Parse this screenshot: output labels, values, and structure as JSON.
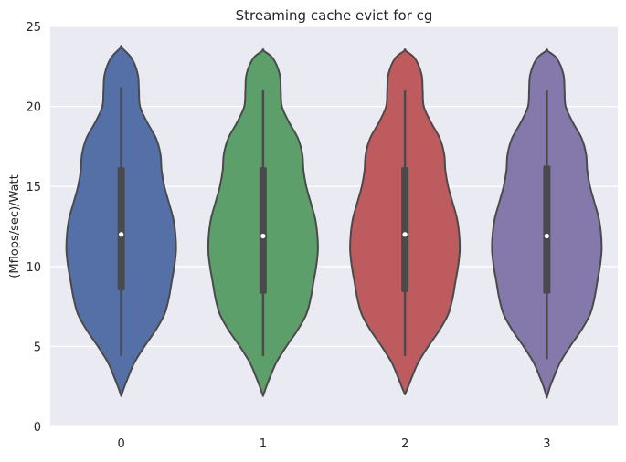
{
  "chart_data": {
    "type": "violin",
    "title": "Streaming cache evict for cg",
    "xlabel": "",
    "ylabel": "(Mflops/sec)/Watt",
    "ylim": [
      0,
      25
    ],
    "yticks": [
      0,
      5,
      10,
      15,
      20,
      25
    ],
    "grid": true,
    "categories": [
      "0",
      "1",
      "2",
      "3"
    ],
    "colors": {
      "plot_bg": "#EAEAF2",
      "grid": "#FFFFFF",
      "outline": "#4A4A4A",
      "violins": [
        "#5470A6",
        "#5C9F6B",
        "#BE5B5E",
        "#8579AB"
      ]
    },
    "violins": [
      {
        "category": "0",
        "median": 12.0,
        "q1": 8.5,
        "q3": 16.2,
        "whisker_low": 4.4,
        "whisker_high": 21.2,
        "min_extent": 1.9,
        "max_extent": 23.7,
        "density": [
          [
            1.9,
            0.0
          ],
          [
            2.5,
            0.06
          ],
          [
            3.2,
            0.14
          ],
          [
            4.0,
            0.24
          ],
          [
            5.0,
            0.42
          ],
          [
            6.0,
            0.62
          ],
          [
            7.0,
            0.78
          ],
          [
            8.0,
            0.86
          ],
          [
            9.0,
            0.91
          ],
          [
            10.0,
            0.96
          ],
          [
            11.0,
            0.99
          ],
          [
            12.0,
            0.98
          ],
          [
            13.0,
            0.94
          ],
          [
            14.0,
            0.86
          ],
          [
            15.0,
            0.78
          ],
          [
            16.0,
            0.73
          ],
          [
            17.0,
            0.71
          ],
          [
            18.0,
            0.63
          ],
          [
            19.0,
            0.47
          ],
          [
            20.0,
            0.34
          ],
          [
            21.0,
            0.32
          ],
          [
            22.0,
            0.3
          ],
          [
            23.0,
            0.19
          ],
          [
            23.7,
            0.0
          ]
        ]
      },
      {
        "category": "1",
        "median": 11.9,
        "q1": 8.3,
        "q3": 16.2,
        "whisker_low": 4.4,
        "whisker_high": 21.0,
        "min_extent": 1.9,
        "max_extent": 23.5,
        "density": [
          [
            1.9,
            0.0
          ],
          [
            2.5,
            0.06
          ],
          [
            3.2,
            0.14
          ],
          [
            4.0,
            0.24
          ],
          [
            5.0,
            0.42
          ],
          [
            6.0,
            0.62
          ],
          [
            7.0,
            0.78
          ],
          [
            8.0,
            0.86
          ],
          [
            9.0,
            0.91
          ],
          [
            10.0,
            0.96
          ],
          [
            11.0,
            0.99
          ],
          [
            12.0,
            0.98
          ],
          [
            13.0,
            0.94
          ],
          [
            14.0,
            0.86
          ],
          [
            15.0,
            0.78
          ],
          [
            16.0,
            0.73
          ],
          [
            17.0,
            0.71
          ],
          [
            18.0,
            0.63
          ],
          [
            19.0,
            0.47
          ],
          [
            20.0,
            0.34
          ],
          [
            21.0,
            0.32
          ],
          [
            22.0,
            0.3
          ],
          [
            23.0,
            0.18
          ],
          [
            23.5,
            0.0
          ]
        ]
      },
      {
        "category": "2",
        "median": 12.0,
        "q1": 8.4,
        "q3": 16.2,
        "whisker_low": 4.4,
        "whisker_high": 21.0,
        "min_extent": 2.0,
        "max_extent": 23.5,
        "density": [
          [
            2.0,
            0.0
          ],
          [
            2.5,
            0.06
          ],
          [
            3.2,
            0.14
          ],
          [
            4.0,
            0.24
          ],
          [
            5.0,
            0.42
          ],
          [
            6.0,
            0.62
          ],
          [
            7.0,
            0.78
          ],
          [
            8.0,
            0.86
          ],
          [
            9.0,
            0.91
          ],
          [
            10.0,
            0.96
          ],
          [
            11.0,
            0.99
          ],
          [
            12.0,
            0.98
          ],
          [
            13.0,
            0.94
          ],
          [
            14.0,
            0.86
          ],
          [
            15.0,
            0.78
          ],
          [
            16.0,
            0.73
          ],
          [
            17.0,
            0.71
          ],
          [
            18.0,
            0.63
          ],
          [
            19.0,
            0.47
          ],
          [
            20.0,
            0.34
          ],
          [
            21.0,
            0.32
          ],
          [
            22.0,
            0.3
          ],
          [
            23.0,
            0.18
          ],
          [
            23.5,
            0.0
          ]
        ]
      },
      {
        "category": "3",
        "median": 11.9,
        "q1": 8.3,
        "q3": 16.3,
        "whisker_low": 4.2,
        "whisker_high": 21.0,
        "min_extent": 1.8,
        "max_extent": 23.5,
        "density": [
          [
            1.8,
            0.0
          ],
          [
            2.5,
            0.06
          ],
          [
            3.2,
            0.14
          ],
          [
            4.0,
            0.24
          ],
          [
            5.0,
            0.42
          ],
          [
            6.0,
            0.62
          ],
          [
            7.0,
            0.78
          ],
          [
            8.0,
            0.86
          ],
          [
            9.0,
            0.91
          ],
          [
            10.0,
            0.96
          ],
          [
            11.0,
            0.99
          ],
          [
            12.0,
            0.98
          ],
          [
            13.0,
            0.94
          ],
          [
            14.0,
            0.86
          ],
          [
            15.0,
            0.78
          ],
          [
            16.0,
            0.73
          ],
          [
            17.0,
            0.71
          ],
          [
            18.0,
            0.63
          ],
          [
            19.0,
            0.47
          ],
          [
            20.0,
            0.34
          ],
          [
            21.0,
            0.32
          ],
          [
            22.0,
            0.3
          ],
          [
            23.0,
            0.18
          ],
          [
            23.5,
            0.0
          ]
        ]
      }
    ]
  }
}
